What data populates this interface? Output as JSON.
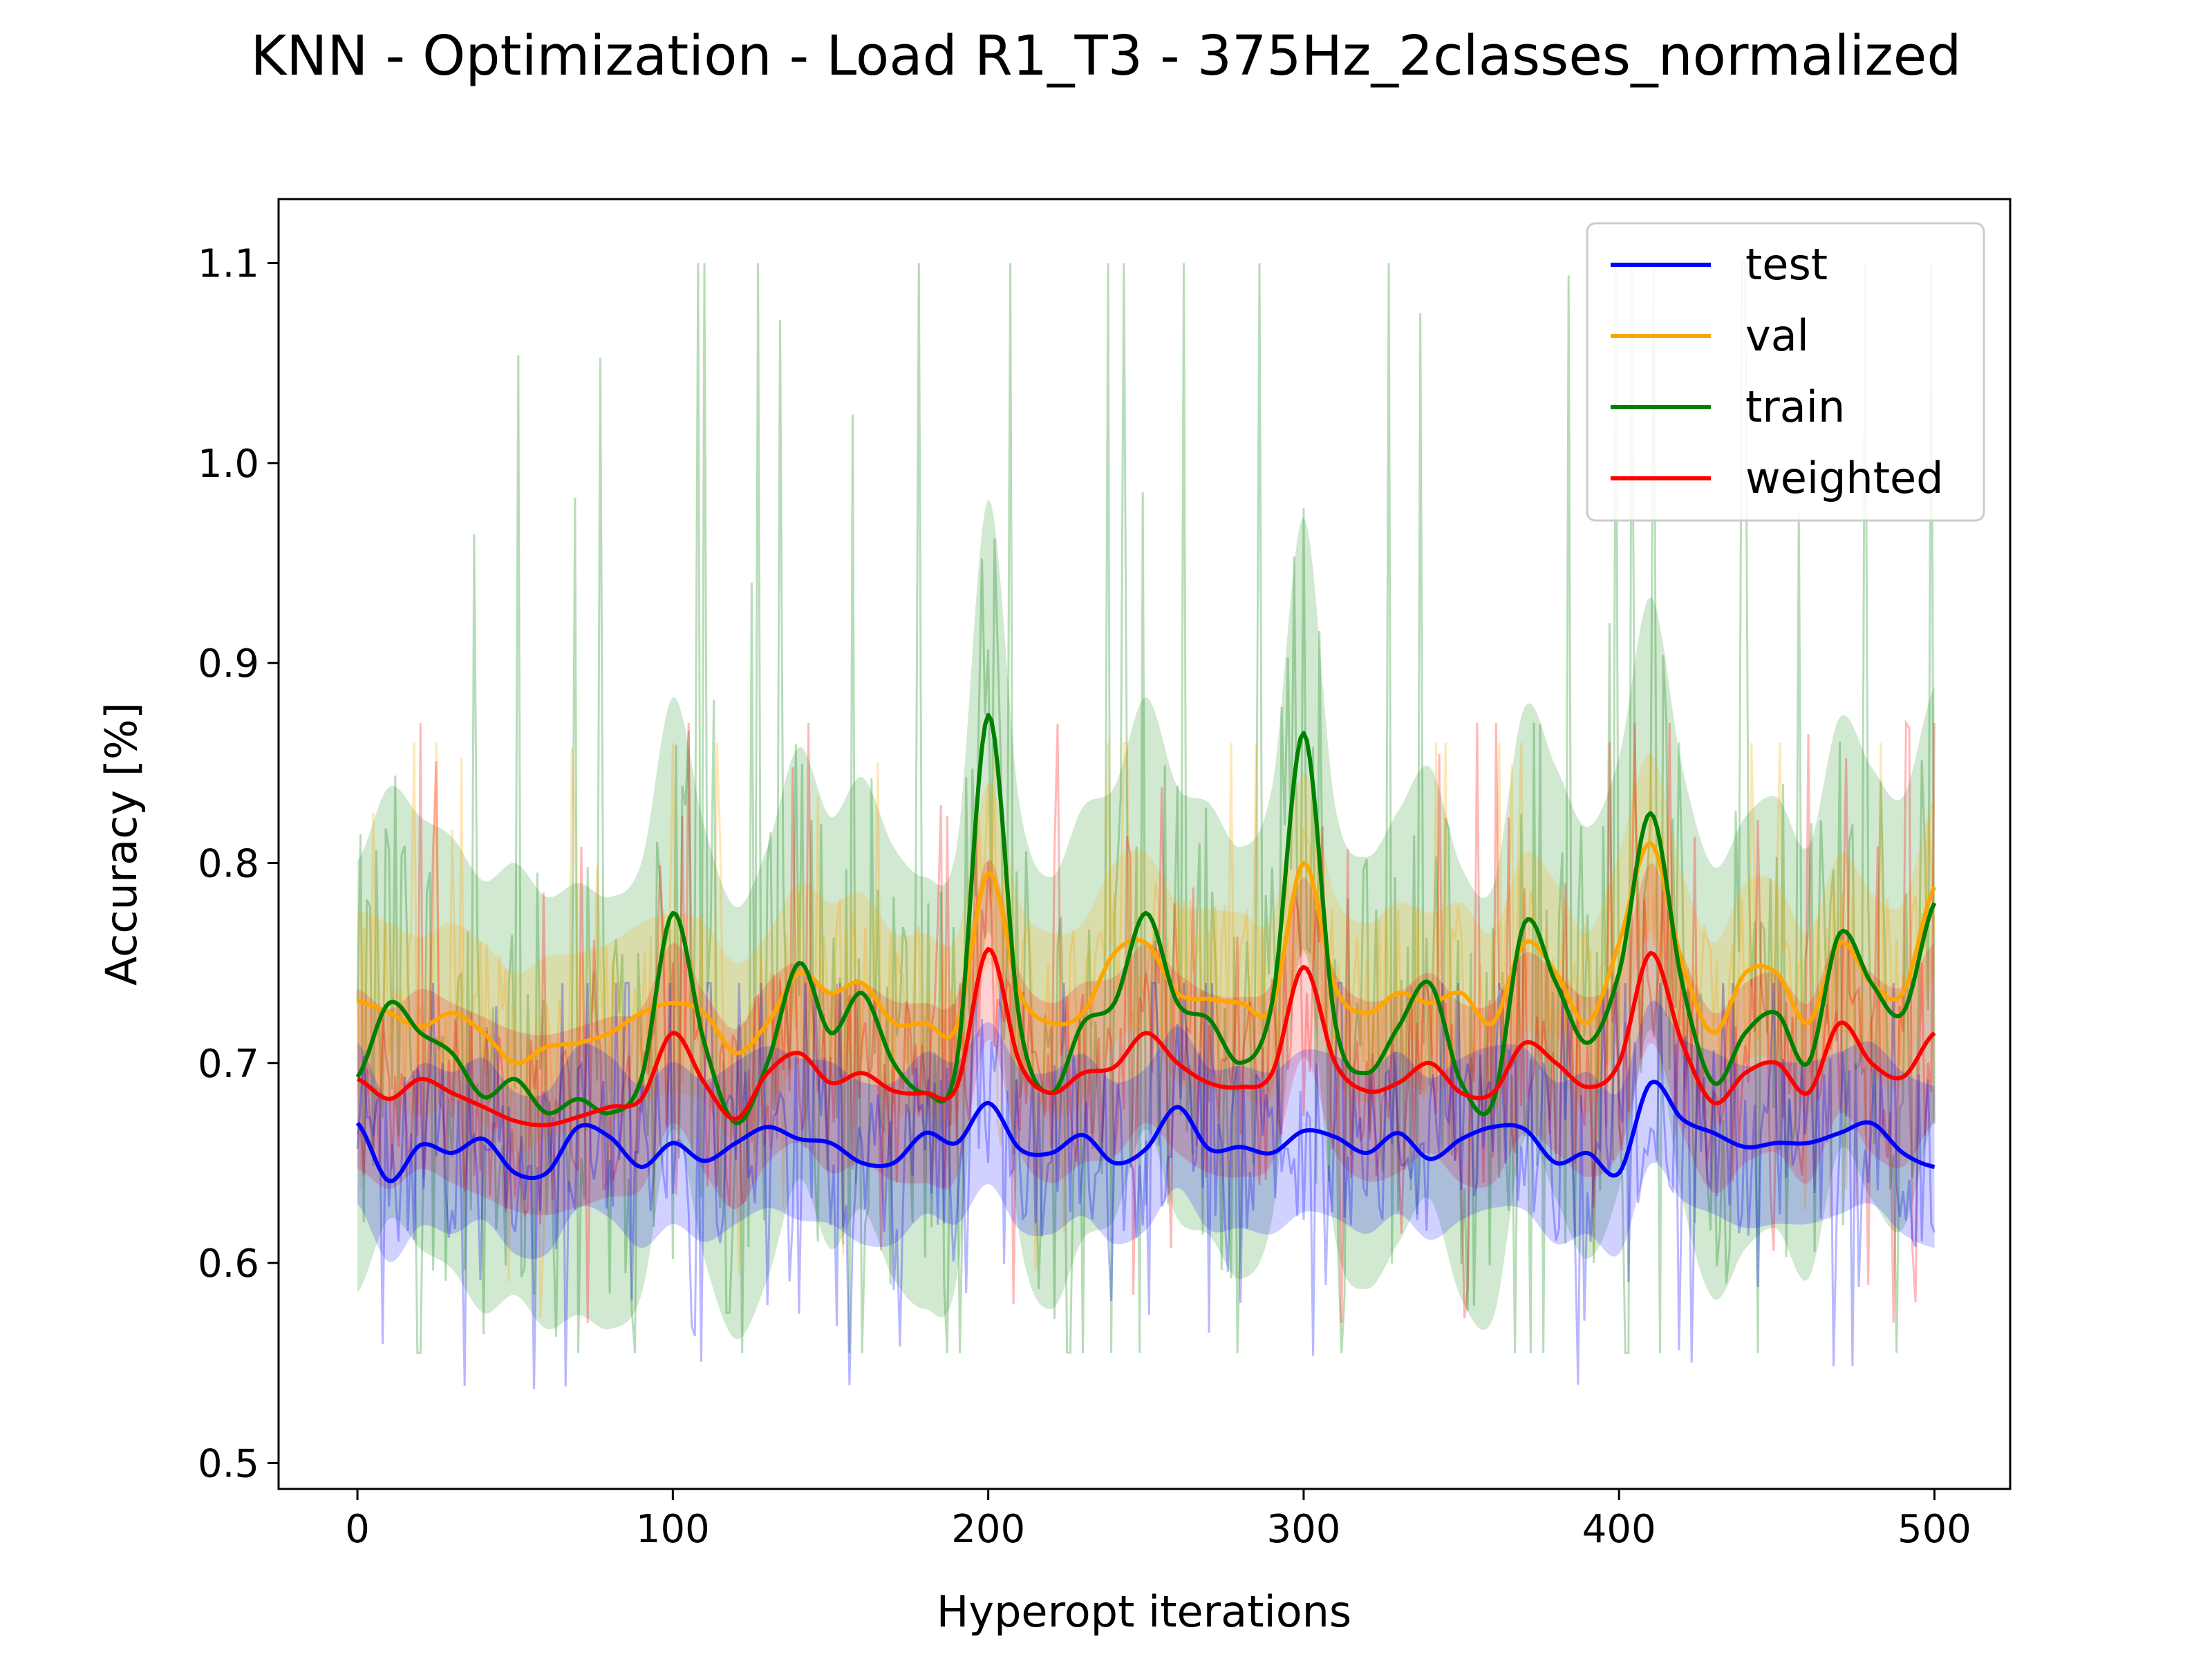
{
  "chart_data": {
    "type": "line",
    "title": "KNN - Optimization - Load R1_T3 - 375Hz_2classes_normalized",
    "xlabel": "Hyperopt iterations",
    "ylabel": "Accuracy [%]",
    "xlim": [
      -25,
      524
    ],
    "ylim": [
      0.487,
      1.132
    ],
    "xticks": [
      0,
      100,
      200,
      300,
      400,
      500
    ],
    "xtick_labels": [
      "0",
      "100",
      "200",
      "300",
      "400",
      "500"
    ],
    "yticks": [
      0.5,
      0.6,
      0.7,
      0.8,
      0.9,
      1.0,
      1.1
    ],
    "ytick_labels": [
      "0.5",
      "0.6",
      "0.7",
      "0.8",
      "0.9",
      "1.0",
      "1.1"
    ],
    "grid": false,
    "legend_position": "top-right",
    "x": [
      0,
      10,
      20,
      30,
      40,
      50,
      60,
      70,
      80,
      90,
      100,
      110,
      120,
      130,
      140,
      150,
      160,
      170,
      180,
      190,
      200,
      210,
      220,
      230,
      240,
      250,
      260,
      270,
      280,
      290,
      300,
      310,
      320,
      330,
      340,
      350,
      360,
      370,
      380,
      390,
      400,
      410,
      420,
      430,
      440,
      450,
      460,
      470,
      480,
      490,
      500
    ],
    "series": [
      {
        "name": "test",
        "color": "#0000ff",
        "values": [
          0.67,
          0.641,
          0.659,
          0.655,
          0.662,
          0.645,
          0.645,
          0.668,
          0.663,
          0.648,
          0.66,
          0.651,
          0.66,
          0.668,
          0.662,
          0.66,
          0.65,
          0.65,
          0.665,
          0.66,
          0.68,
          0.657,
          0.655,
          0.664,
          0.65,
          0.657,
          0.678,
          0.657,
          0.658,
          0.655,
          0.666,
          0.663,
          0.655,
          0.665,
          0.652,
          0.662,
          0.668,
          0.667,
          0.65,
          0.655,
          0.645,
          0.69,
          0.672,
          0.665,
          0.658,
          0.66,
          0.66,
          0.665,
          0.67,
          0.655,
          0.648
        ]
      },
      {
        "name": "val",
        "color": "#ffa500",
        "values": [
          0.731,
          0.725,
          0.718,
          0.725,
          0.715,
          0.7,
          0.708,
          0.71,
          0.715,
          0.725,
          0.73,
          0.725,
          0.705,
          0.72,
          0.745,
          0.735,
          0.74,
          0.72,
          0.72,
          0.718,
          0.795,
          0.735,
          0.72,
          0.725,
          0.755,
          0.76,
          0.735,
          0.732,
          0.73,
          0.728,
          0.8,
          0.738,
          0.725,
          0.735,
          0.73,
          0.735,
          0.72,
          0.76,
          0.745,
          0.72,
          0.76,
          0.81,
          0.75,
          0.715,
          0.745,
          0.745,
          0.72,
          0.76,
          0.74,
          0.735,
          0.788
        ]
      },
      {
        "name": "train",
        "color": "#008000",
        "values": [
          0.693,
          0.73,
          0.715,
          0.705,
          0.683,
          0.692,
          0.675,
          0.682,
          0.675,
          0.692,
          0.775,
          0.71,
          0.67,
          0.7,
          0.75,
          0.715,
          0.735,
          0.7,
          0.685,
          0.7,
          0.874,
          0.72,
          0.685,
          0.72,
          0.73,
          0.775,
          0.73,
          0.722,
          0.7,
          0.73,
          0.865,
          0.72,
          0.695,
          0.718,
          0.74,
          0.69,
          0.68,
          0.77,
          0.74,
          0.71,
          0.745,
          0.825,
          0.74,
          0.69,
          0.715,
          0.725,
          0.7,
          0.765,
          0.74,
          0.725,
          0.78
        ]
      },
      {
        "name": "weighted",
        "color": "#ff0000",
        "values": [
          0.692,
          0.682,
          0.692,
          0.685,
          0.678,
          0.671,
          0.669,
          0.673,
          0.678,
          0.682,
          0.715,
          0.69,
          0.672,
          0.695,
          0.705,
          0.69,
          0.695,
          0.686,
          0.685,
          0.688,
          0.757,
          0.7,
          0.685,
          0.695,
          0.698,
          0.715,
          0.7,
          0.69,
          0.688,
          0.695,
          0.748,
          0.7,
          0.686,
          0.69,
          0.7,
          0.685,
          0.685,
          0.71,
          0.7,
          0.688,
          0.7,
          0.755,
          0.71,
          0.68,
          0.695,
          0.7,
          0.685,
          0.72,
          0.7,
          0.693,
          0.715
        ]
      }
    ]
  }
}
